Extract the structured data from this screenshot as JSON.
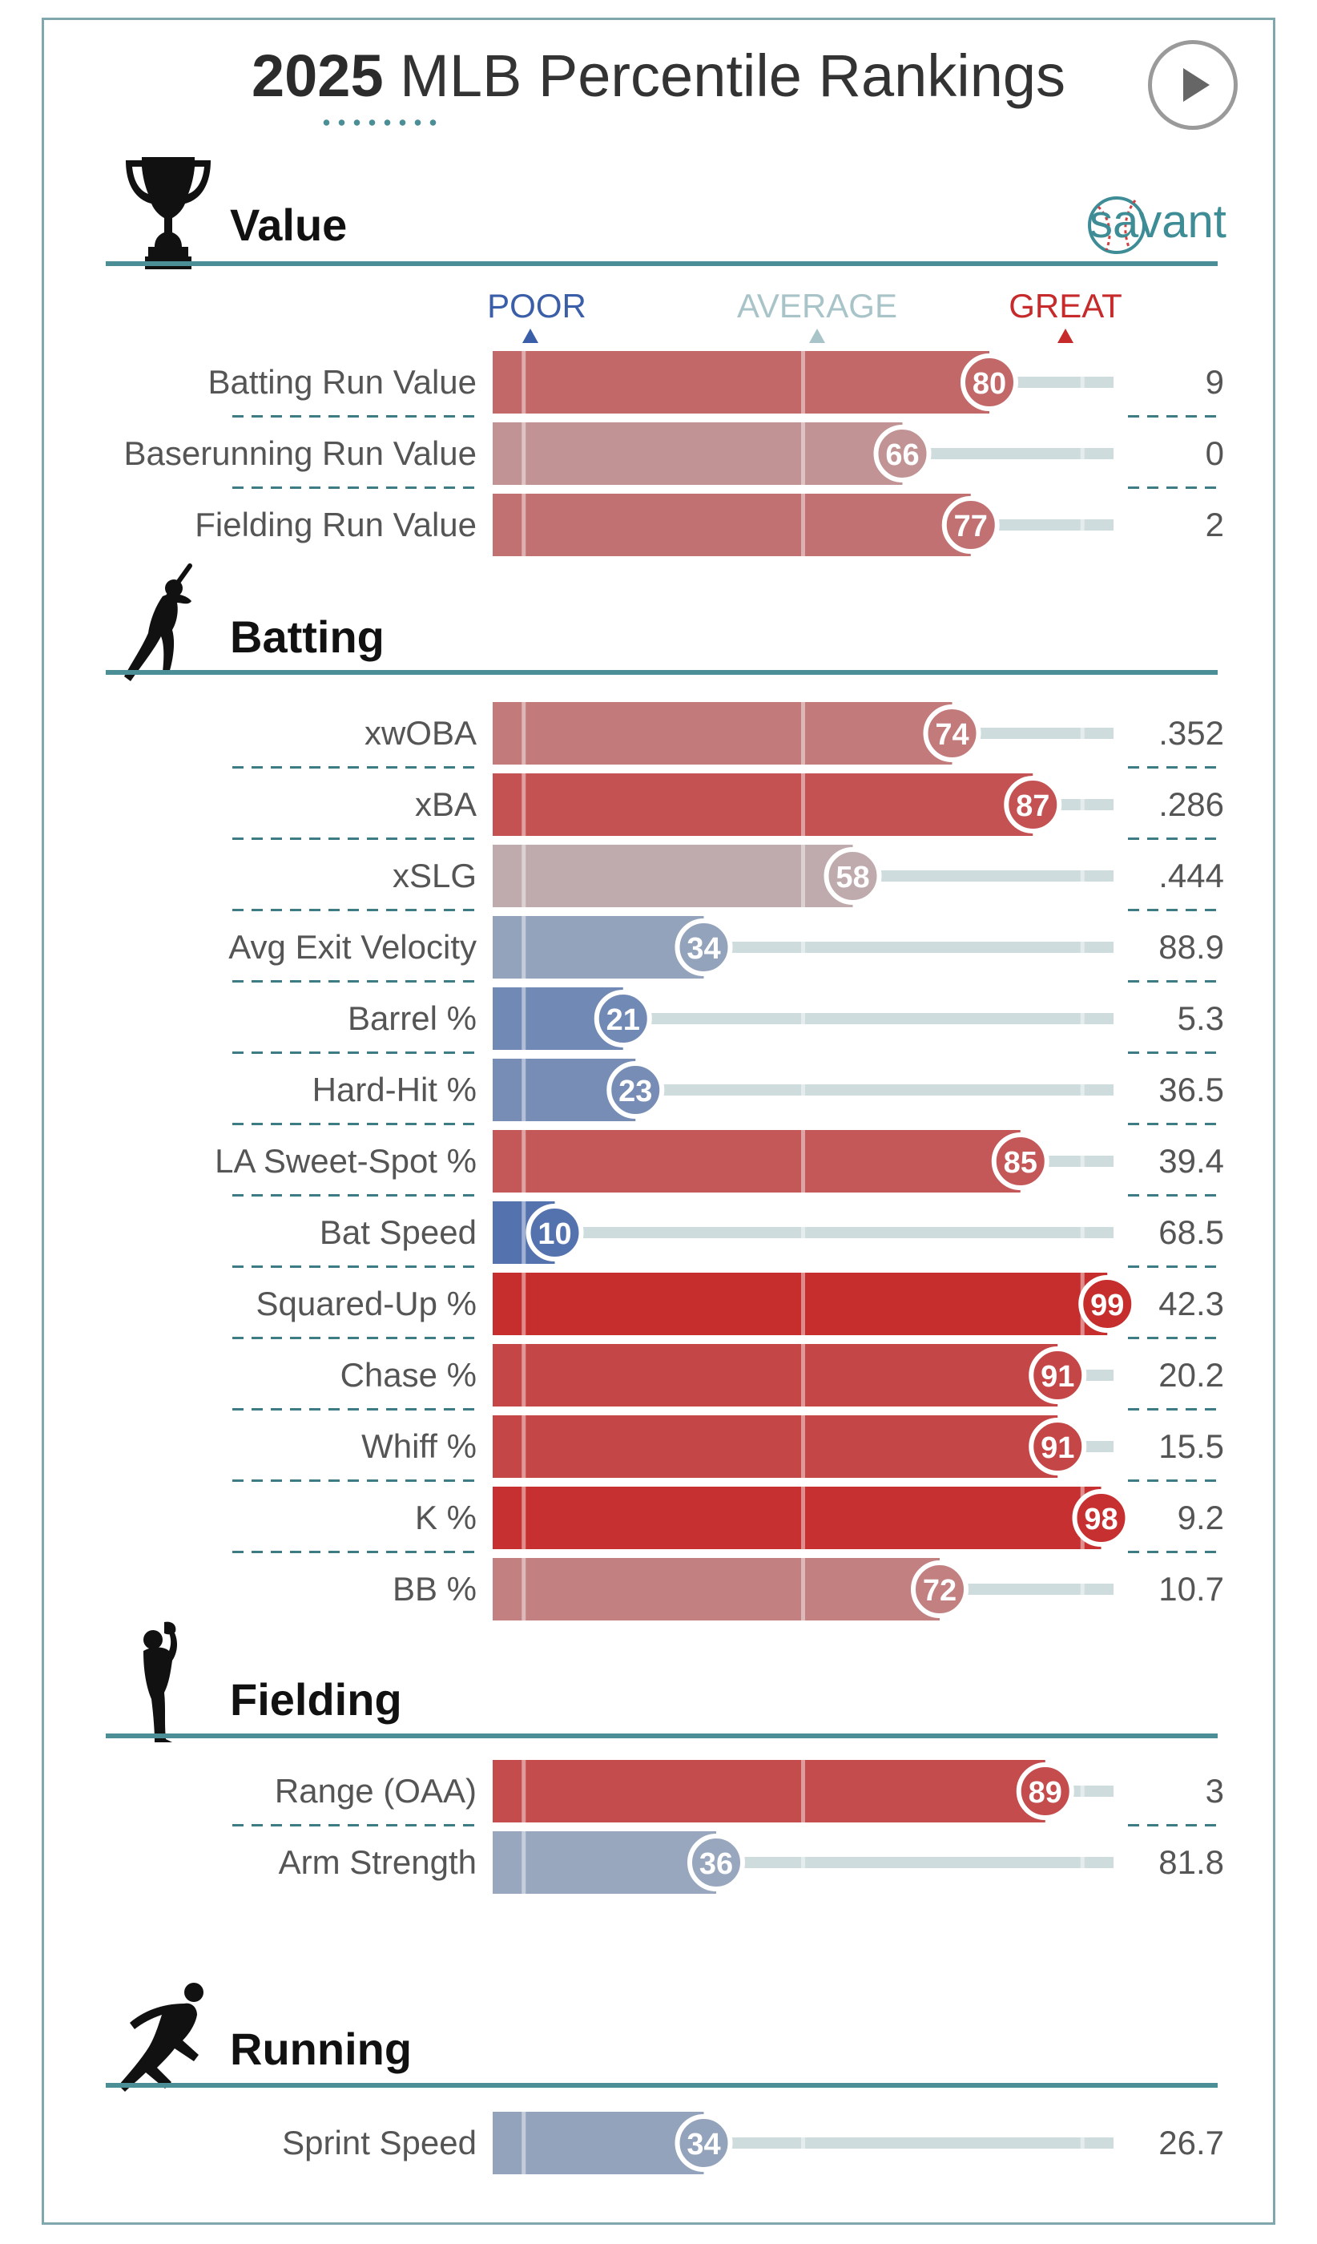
{
  "title": {
    "year": "2025",
    "rest": "MLB Percentile Rankings"
  },
  "header": {
    "play_icon": "play-icon",
    "logo_text": "savant",
    "logo_icon": "baseball-icon"
  },
  "legend": {
    "poor": "POOR",
    "average": "AVERAGE",
    "great": "GREAT",
    "poor_color": "#3a5ea8",
    "average_color": "#a9c4c9",
    "great_color": "#c62a2a"
  },
  "sections": [
    {
      "title": "Value",
      "icon": "trophy-icon"
    },
    {
      "title": "Batting",
      "icon": "batter-icon"
    },
    {
      "title": "Fielding",
      "icon": "fielder-icon"
    },
    {
      "title": "Running",
      "icon": "runner-icon"
    }
  ],
  "chart_data": {
    "type": "bar",
    "orientation": "horizontal",
    "xlim": [
      0,
      100
    ],
    "reference_lines": [
      5,
      50,
      95
    ],
    "groups": [
      {
        "section": "Value",
        "metrics": [
          {
            "label": "Batting Run Value",
            "percentile": 80,
            "value": "9"
          },
          {
            "label": "Baserunning Run Value",
            "percentile": 66,
            "value": "0"
          },
          {
            "label": "Fielding Run Value",
            "percentile": 77,
            "value": "2"
          }
        ]
      },
      {
        "section": "Batting",
        "metrics": [
          {
            "label": "xwOBA",
            "percentile": 74,
            "value": ".352"
          },
          {
            "label": "xBA",
            "percentile": 87,
            "value": ".286"
          },
          {
            "label": "xSLG",
            "percentile": 58,
            "value": ".444"
          },
          {
            "label": "Avg Exit Velocity",
            "percentile": 34,
            "value": "88.9"
          },
          {
            "label": "Barrel %",
            "percentile": 21,
            "value": "5.3"
          },
          {
            "label": "Hard-Hit %",
            "percentile": 23,
            "value": "36.5"
          },
          {
            "label": "LA Sweet-Spot %",
            "percentile": 85,
            "value": "39.4"
          },
          {
            "label": "Bat Speed",
            "percentile": 10,
            "value": "68.5"
          },
          {
            "label": "Squared-Up %",
            "percentile": 99,
            "value": "42.3"
          },
          {
            "label": "Chase %",
            "percentile": 91,
            "value": "20.2"
          },
          {
            "label": "Whiff %",
            "percentile": 91,
            "value": "15.5"
          },
          {
            "label": "K %",
            "percentile": 98,
            "value": "9.2"
          },
          {
            "label": "BB %",
            "percentile": 72,
            "value": "10.7"
          }
        ]
      },
      {
        "section": "Fielding",
        "metrics": [
          {
            "label": "Range (OAA)",
            "percentile": 89,
            "value": "3"
          },
          {
            "label": "Arm Strength",
            "percentile": 36,
            "value": "81.8"
          }
        ]
      },
      {
        "section": "Running",
        "metrics": [
          {
            "label": "Sprint Speed",
            "percentile": 34,
            "value": "26.7"
          }
        ]
      }
    ]
  }
}
